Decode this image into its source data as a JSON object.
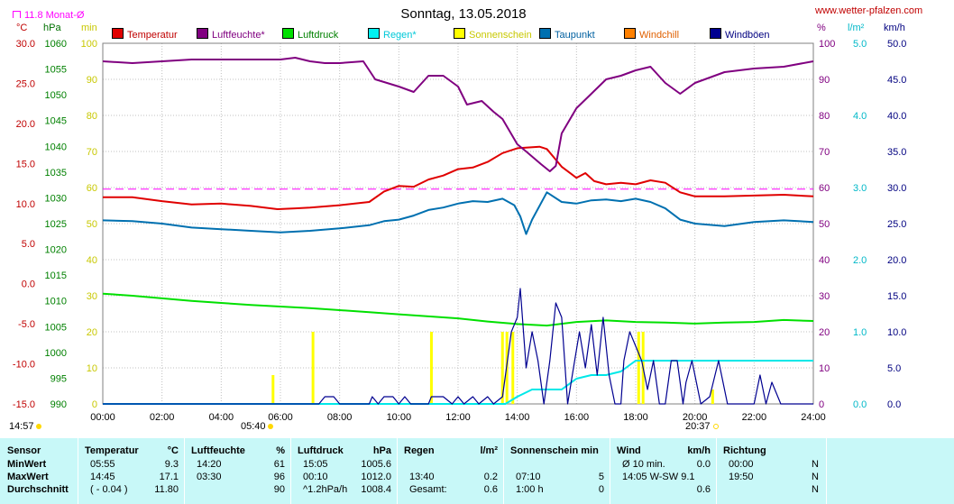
{
  "title": "Sonntag, 13.05.2018",
  "website": "www.wetter-pfalzen.com",
  "month_avg": "11.8 Monat-Ø",
  "axis_units": {
    "temp": "°C",
    "pressure": "hPa",
    "minutes": "min",
    "percent": "%",
    "rain": "l/m²",
    "wind": "km/h"
  },
  "legend": [
    {
      "label": "Temperatur",
      "color": "#e00000"
    },
    {
      "label": "Luftfeuchte*",
      "color": "#800080"
    },
    {
      "label": "Luftdruck",
      "color": "#00e000"
    },
    {
      "label": "Regen*",
      "color": "#00e8e8"
    },
    {
      "label": "Sonnenschein",
      "color": "#ffff00"
    },
    {
      "label": "Taupunkt",
      "color": "#0070b0"
    },
    {
      "label": "Windchill",
      "color": "#ff8000"
    },
    {
      "label": "Windböen",
      "color": "#000090"
    }
  ],
  "sun": {
    "rise_left": "14:57",
    "sunrise": "05:40",
    "sunset": "20:37"
  },
  "colors": {
    "temp": "#e00000",
    "humidity": "#800080",
    "pressure": "#00e000",
    "rain": "#00e8e8",
    "sun": "#ffff00",
    "dewpoint": "#0070b0",
    "wind": "#000090",
    "table_bg": "#c8f8f8",
    "avg_line": "#ff00ff"
  },
  "chart_data": {
    "type": "line",
    "title": "Sonntag, 13.05.2018",
    "x_ticks": [
      "00:00",
      "02:00",
      "04:00",
      "06:00",
      "08:00",
      "10:00",
      "12:00",
      "14:00",
      "16:00",
      "18:00",
      "20:00",
      "22:00",
      "24:00"
    ],
    "axes": {
      "temp": {
        "unit": "°C",
        "range": [
          -15,
          30
        ],
        "ticks": [
          "30.0",
          "25.0",
          "20.0",
          "15.0",
          "10.0",
          "5.0",
          "0.0",
          "-5.0",
          "-10.0",
          "-15.0"
        ]
      },
      "pressure": {
        "unit": "hPa",
        "range": [
          990,
          1060
        ],
        "ticks": [
          "1060",
          "1055",
          "1050",
          "1045",
          "1040",
          "1035",
          "1030",
          "1025",
          "1020",
          "1015",
          "1010",
          "1005",
          "1000",
          "995",
          "990"
        ]
      },
      "minutes": {
        "unit": "min",
        "range": [
          0,
          100
        ],
        "ticks": [
          "100",
          "90",
          "80",
          "70",
          "60",
          "50",
          "40",
          "30",
          "20",
          "10",
          "0"
        ]
      },
      "percent": {
        "unit": "%",
        "range": [
          0,
          100
        ],
        "ticks": [
          "100",
          "90",
          "80",
          "70",
          "60",
          "50",
          "40",
          "30",
          "20",
          "10",
          "0"
        ]
      },
      "rain": {
        "unit": "l/m²",
        "range": [
          0,
          5
        ],
        "ticks": [
          "5.0",
          "4.0",
          "3.0",
          "2.0",
          "1.0",
          "0.0"
        ]
      },
      "wind": {
        "unit": "km/h",
        "range": [
          0,
          50
        ],
        "ticks": [
          "50.0",
          "45.0",
          "40.0",
          "35.0",
          "30.0",
          "25.0",
          "20.0",
          "15.0",
          "10.0",
          "5.0",
          "0.0"
        ]
      }
    },
    "month_avg_temp": 11.8,
    "series": [
      {
        "name": "Temperatur",
        "unit": "°C",
        "points": [
          [
            0,
            10.8
          ],
          [
            1,
            10.8
          ],
          [
            2,
            10.3
          ],
          [
            3,
            9.9
          ],
          [
            4,
            10.0
          ],
          [
            5,
            9.7
          ],
          [
            5.9,
            9.3
          ],
          [
            6.5,
            9.4
          ],
          [
            7,
            9.5
          ],
          [
            8,
            9.8
          ],
          [
            9,
            10.2
          ],
          [
            9.5,
            11.5
          ],
          [
            10,
            12.2
          ],
          [
            10.5,
            12.1
          ],
          [
            11,
            13.0
          ],
          [
            11.5,
            13.5
          ],
          [
            12,
            14.3
          ],
          [
            12.5,
            14.5
          ],
          [
            13,
            15.2
          ],
          [
            13.5,
            16.3
          ],
          [
            14,
            16.9
          ],
          [
            14.75,
            17.1
          ],
          [
            15,
            16.8
          ],
          [
            15.5,
            14.6
          ],
          [
            16,
            13.2
          ],
          [
            16.3,
            13.8
          ],
          [
            16.6,
            12.8
          ],
          [
            17,
            12.4
          ],
          [
            17.5,
            12.6
          ],
          [
            18,
            12.4
          ],
          [
            18.5,
            12.9
          ],
          [
            19,
            12.6
          ],
          [
            19.5,
            11.4
          ],
          [
            20,
            10.9
          ],
          [
            21,
            10.9
          ],
          [
            22,
            11.0
          ],
          [
            23,
            11.1
          ],
          [
            24,
            10.9
          ]
        ]
      },
      {
        "name": "Luftfeuchte*",
        "unit": "%",
        "points": [
          [
            0,
            95
          ],
          [
            1,
            94.5
          ],
          [
            2,
            95
          ],
          [
            3,
            95.5
          ],
          [
            4,
            95.5
          ],
          [
            5,
            95.5
          ],
          [
            6,
            95.5
          ],
          [
            6.5,
            96
          ],
          [
            7,
            95
          ],
          [
            7.5,
            94.5
          ],
          [
            8,
            94.5
          ],
          [
            8.8,
            95
          ],
          [
            9.2,
            90
          ],
          [
            10,
            88
          ],
          [
            10.5,
            86.5
          ],
          [
            11,
            91
          ],
          [
            11.5,
            91
          ],
          [
            12,
            88
          ],
          [
            12.3,
            83
          ],
          [
            12.8,
            84
          ],
          [
            13.2,
            81
          ],
          [
            13.5,
            79
          ],
          [
            14,
            72
          ],
          [
            14.3,
            70
          ],
          [
            14.8,
            66.5
          ],
          [
            15.1,
            64.5
          ],
          [
            15.3,
            66
          ],
          [
            15.5,
            75
          ],
          [
            16,
            82
          ],
          [
            16.5,
            86
          ],
          [
            17,
            90
          ],
          [
            17.5,
            91
          ],
          [
            18,
            92.5
          ],
          [
            18.5,
            93.5
          ],
          [
            19,
            89
          ],
          [
            19.5,
            86
          ],
          [
            20,
            89
          ],
          [
            21,
            92
          ],
          [
            22,
            93
          ],
          [
            23,
            93.5
          ],
          [
            24,
            95
          ]
        ]
      },
      {
        "name": "Luftdruck",
        "unit": "hPa",
        "points": [
          [
            0,
            1011.4
          ],
          [
            1,
            1011.0
          ],
          [
            2,
            1010.5
          ],
          [
            3,
            1010.0
          ],
          [
            4,
            1009.6
          ],
          [
            5,
            1009.2
          ],
          [
            6,
            1008.9
          ],
          [
            7,
            1008.6
          ],
          [
            8,
            1008.2
          ],
          [
            9,
            1007.8
          ],
          [
            10,
            1007.4
          ],
          [
            11,
            1007.0
          ],
          [
            12,
            1006.6
          ],
          [
            13,
            1006.0
          ],
          [
            14,
            1005.5
          ],
          [
            15,
            1005.2
          ],
          [
            16,
            1005.9
          ],
          [
            17,
            1006.2
          ],
          [
            18,
            1005.9
          ],
          [
            19,
            1005.8
          ],
          [
            20,
            1005.6
          ],
          [
            21,
            1005.8
          ],
          [
            22,
            1005.9
          ],
          [
            23,
            1006.3
          ],
          [
            24,
            1006.1
          ]
        ]
      },
      {
        "name": "Taupunkt",
        "unit": "°C",
        "points": [
          [
            0,
            7.9
          ],
          [
            1,
            7.8
          ],
          [
            2,
            7.5
          ],
          [
            3,
            7.0
          ],
          [
            4,
            6.8
          ],
          [
            5,
            6.6
          ],
          [
            6,
            6.4
          ],
          [
            7,
            6.6
          ],
          [
            8,
            6.9
          ],
          [
            9,
            7.3
          ],
          [
            9.5,
            7.8
          ],
          [
            10,
            8.0
          ],
          [
            10.5,
            8.5
          ],
          [
            11,
            9.2
          ],
          [
            11.5,
            9.5
          ],
          [
            12,
            10.0
          ],
          [
            12.5,
            10.3
          ],
          [
            13,
            10.2
          ],
          [
            13.5,
            10.6
          ],
          [
            13.9,
            9.8
          ],
          [
            14.1,
            8.4
          ],
          [
            14.3,
            6.2
          ],
          [
            14.5,
            8.0
          ],
          [
            15,
            11.4
          ],
          [
            15.5,
            10.2
          ],
          [
            16,
            10.0
          ],
          [
            16.5,
            10.4
          ],
          [
            17,
            10.5
          ],
          [
            17.5,
            10.3
          ],
          [
            18,
            10.6
          ],
          [
            18.5,
            10.2
          ],
          [
            19,
            9.4
          ],
          [
            19.5,
            8.0
          ],
          [
            20,
            7.5
          ],
          [
            21,
            7.2
          ],
          [
            22,
            7.7
          ],
          [
            23,
            7.9
          ],
          [
            24,
            7.7
          ]
        ]
      },
      {
        "name": "Regen*",
        "unit": "l/m²",
        "points": [
          [
            0,
            0
          ],
          [
            13.6,
            0
          ],
          [
            14,
            0.1
          ],
          [
            14.5,
            0.2
          ],
          [
            15,
            0.2
          ],
          [
            15.5,
            0.2
          ],
          [
            16,
            0.35
          ],
          [
            16.5,
            0.4
          ],
          [
            17,
            0.4
          ],
          [
            17.5,
            0.45
          ],
          [
            18,
            0.6
          ],
          [
            24,
            0.6
          ]
        ]
      },
      {
        "name": "Windböen",
        "unit": "km/h",
        "points": [
          [
            0,
            0
          ],
          [
            7.3,
            0
          ],
          [
            7.5,
            1
          ],
          [
            7.8,
            1
          ],
          [
            8,
            0
          ],
          [
            9,
            0
          ],
          [
            9.1,
            1
          ],
          [
            9.3,
            0
          ],
          [
            9.5,
            1
          ],
          [
            9.8,
            1
          ],
          [
            10,
            0
          ],
          [
            10.2,
            1
          ],
          [
            10.4,
            0
          ],
          [
            11,
            0
          ],
          [
            11.1,
            1
          ],
          [
            11.5,
            1
          ],
          [
            11.8,
            0
          ],
          [
            12,
            1
          ],
          [
            12.2,
            0
          ],
          [
            12.5,
            1
          ],
          [
            12.7,
            0
          ],
          [
            13,
            1
          ],
          [
            13.2,
            0
          ],
          [
            13.5,
            1
          ],
          [
            13.8,
            10
          ],
          [
            14,
            12
          ],
          [
            14.1,
            16
          ],
          [
            14.3,
            5
          ],
          [
            14.5,
            10
          ],
          [
            14.7,
            6
          ],
          [
            14.9,
            0
          ],
          [
            15.1,
            6
          ],
          [
            15.3,
            14
          ],
          [
            15.5,
            12
          ],
          [
            15.7,
            0
          ],
          [
            15.9,
            5
          ],
          [
            16.1,
            10
          ],
          [
            16.3,
            5
          ],
          [
            16.5,
            11
          ],
          [
            16.7,
            4
          ],
          [
            16.9,
            12
          ],
          [
            17.1,
            4
          ],
          [
            17.3,
            0
          ],
          [
            17.5,
            0
          ],
          [
            17.6,
            6
          ],
          [
            17.8,
            10
          ],
          [
            18.2,
            6
          ],
          [
            18.4,
            2
          ],
          [
            18.6,
            6
          ],
          [
            18.8,
            0
          ],
          [
            19,
            0
          ],
          [
            19.2,
            6
          ],
          [
            19.4,
            6
          ],
          [
            19.6,
            0
          ],
          [
            19.7,
            3
          ],
          [
            19.9,
            6
          ],
          [
            20.2,
            0
          ],
          [
            20.5,
            1
          ],
          [
            20.8,
            6
          ],
          [
            21.1,
            0
          ],
          [
            22,
            0
          ],
          [
            22.2,
            4
          ],
          [
            22.4,
            0
          ],
          [
            22.6,
            3
          ],
          [
            22.9,
            0
          ],
          [
            23.2,
            0
          ],
          [
            24,
            0
          ]
        ]
      }
    ],
    "sunshine_bars": [
      [
        5.75,
        2
      ],
      [
        7.1,
        5
      ],
      [
        11.1,
        5
      ],
      [
        13.5,
        5
      ],
      [
        13.65,
        5
      ],
      [
        13.85,
        5
      ],
      [
        18.1,
        5
      ],
      [
        18.25,
        5
      ],
      [
        20.6,
        1
      ]
    ]
  },
  "table": {
    "rows": [
      "Sensor",
      "MinWert",
      "MaxWert",
      "Durchschnitt"
    ],
    "groups": [
      {
        "name": "Temperatur",
        "unit": "°C",
        "rows": [
          [
            "05:55",
            "9.3"
          ],
          [
            "14:45",
            "17.1"
          ],
          [
            "( - 0.04 )",
            "11.80"
          ]
        ]
      },
      {
        "name": "Luftfeuchte",
        "unit": "%",
        "rows": [
          [
            "14:20",
            "61"
          ],
          [
            "03:30",
            "96"
          ],
          [
            "",
            "90"
          ]
        ]
      },
      {
        "name": "Luftdruck",
        "unit": "hPa",
        "rows": [
          [
            "15:05",
            "1005.6"
          ],
          [
            "00:10",
            "1012.0"
          ],
          [
            "^1.2hPa/h",
            "1008.4"
          ]
        ]
      },
      {
        "name": "Regen",
        "unit": "l/m²",
        "rows": [
          [
            "",
            ""
          ],
          [
            "13:40",
            "0.2"
          ],
          [
            "Gesamt:",
            "0.6"
          ]
        ]
      },
      {
        "name": "Sonnenschein min",
        "unit": "",
        "rows": [
          [
            "",
            ""
          ],
          [
            "07:10",
            "5"
          ],
          [
            "1:00 h",
            "0"
          ]
        ]
      },
      {
        "name": "Wind",
        "unit": "km/h",
        "rows": [
          [
            "Ø 10 min.",
            "0.0"
          ],
          [
            "14:05    W-SW 9.1",
            ""
          ],
          [
            "",
            "0.6"
          ]
        ]
      },
      {
        "name": "Richtung",
        "unit": "",
        "rows": [
          [
            "00:00",
            "N"
          ],
          [
            "19:50",
            "N"
          ],
          [
            "",
            "N"
          ]
        ]
      }
    ]
  }
}
